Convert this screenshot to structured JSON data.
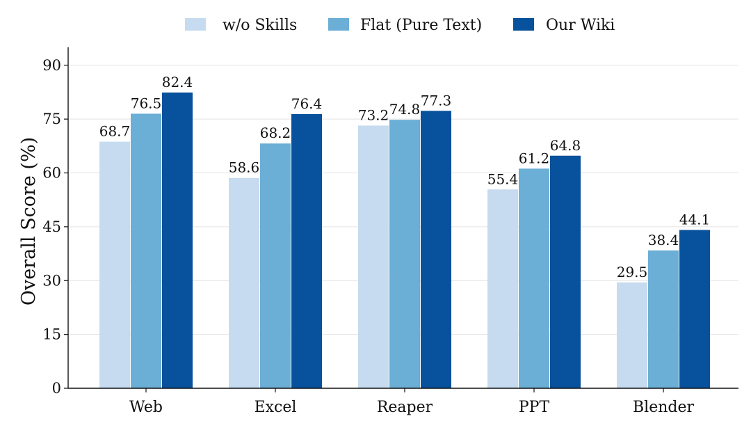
{
  "chart_data": {
    "type": "bar",
    "title": "",
    "xlabel": "",
    "ylabel": "Overall Score (%)",
    "ylim": [
      0,
      95
    ],
    "yticks": [
      0,
      15,
      30,
      45,
      60,
      75,
      90
    ],
    "grid": true,
    "legend_position": "top-center",
    "categories": [
      "Web",
      "Excel",
      "Reaper",
      "PPT",
      "Blender"
    ],
    "series": [
      {
        "name": "w/o Skills",
        "color": "#c6dbef",
        "values": [
          68.7,
          58.6,
          73.2,
          55.4,
          29.5
        ]
      },
      {
        "name": "Flat (Pure Text)",
        "color": "#6baed6",
        "values": [
          76.5,
          68.2,
          74.8,
          61.2,
          38.4
        ]
      },
      {
        "name": "Our Wiki",
        "color": "#08519c",
        "values": [
          82.4,
          76.4,
          77.3,
          64.8,
          44.1
        ]
      }
    ]
  }
}
